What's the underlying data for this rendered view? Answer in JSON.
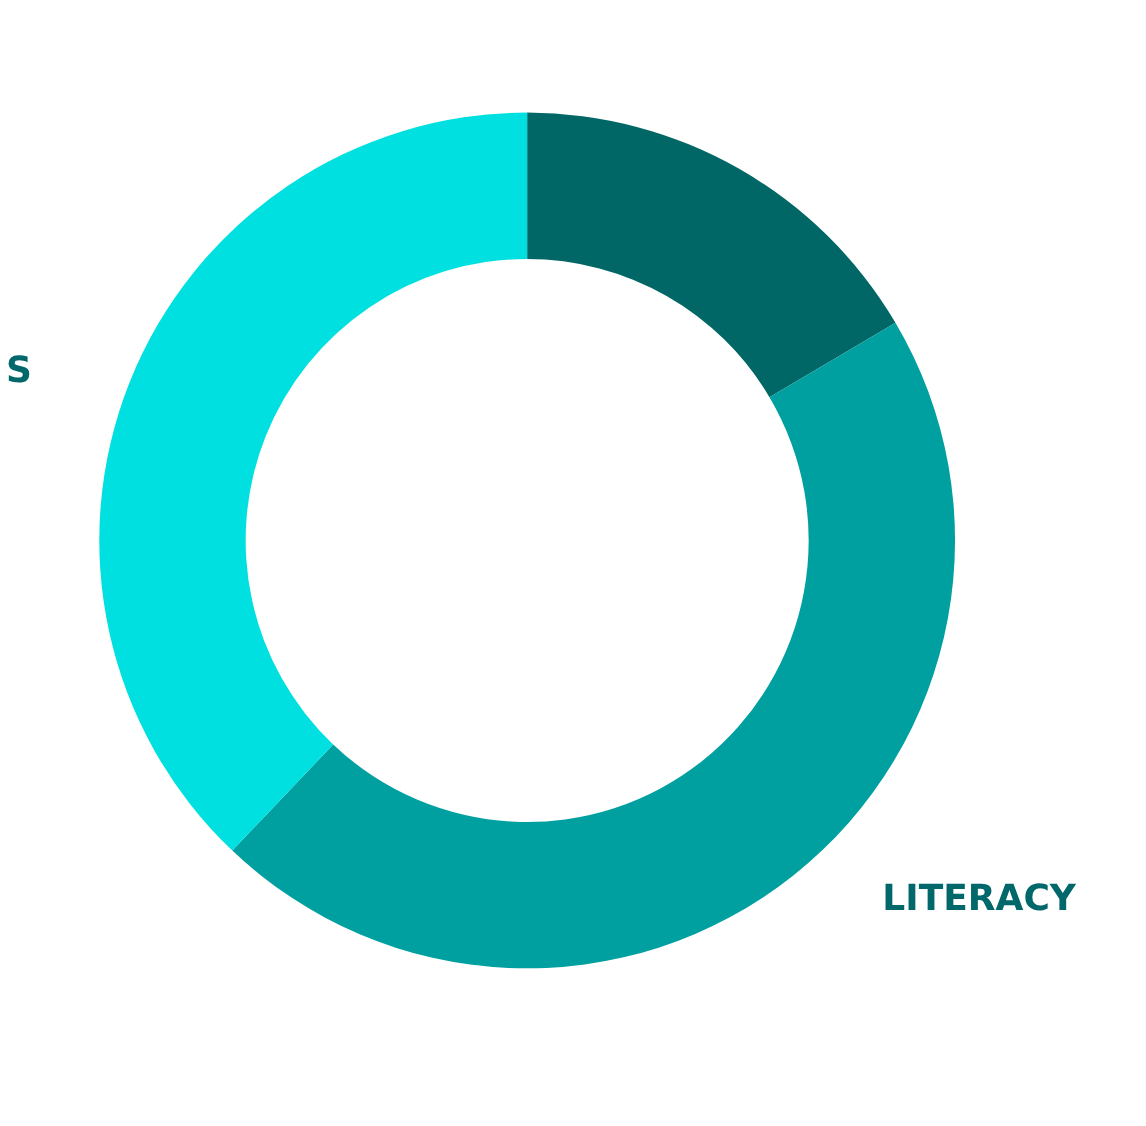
{
  "chart_data": {
    "type": "donut",
    "categories": [
      null,
      "LITERACY",
      "S"
    ],
    "values": [
      16.5,
      45.6,
      37.9
    ],
    "colors": [
      "#006766",
      "#00a0a0",
      "#00e0e0"
    ]
  }
}
